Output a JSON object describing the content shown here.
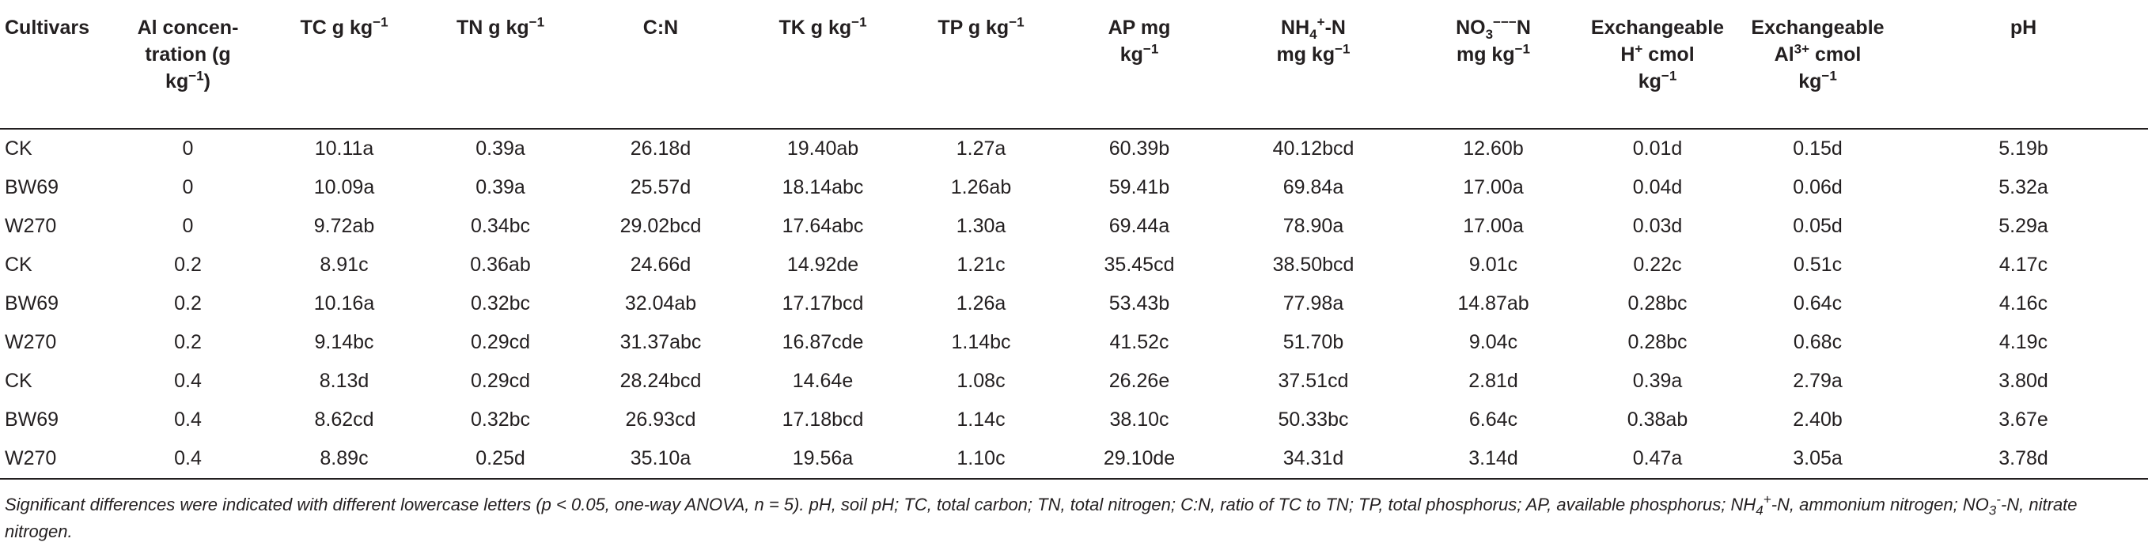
{
  "table": {
    "headers": [
      {
        "id": "cultivars",
        "html": "Cultivars"
      },
      {
        "id": "al",
        "html": "Al concen-<br>tration (g<br>kg<sup>−1</sup>)"
      },
      {
        "id": "tc",
        "html": "TC g kg<sup>−1</sup>"
      },
      {
        "id": "tn",
        "html": "TN g kg<sup>−1</sup>"
      },
      {
        "id": "cn",
        "html": "C:N"
      },
      {
        "id": "tk",
        "html": "TK g kg<sup>−1</sup>"
      },
      {
        "id": "tp",
        "html": "TP g kg<sup>−1</sup>"
      },
      {
        "id": "ap",
        "html": "AP mg<br>kg<sup>−1</sup>"
      },
      {
        "id": "nh4",
        "html": "NH<sub>4</sub><sup>+</sup>-N<br>mg kg<sup>−1</sup>"
      },
      {
        "id": "no3",
        "html": "NO<sub>3</sub><sup>−−−</sup>N<br>mg kg<sup>−1</sup>"
      },
      {
        "id": "exh",
        "html": "Exchangeable<br>H<sup>+</sup> cmol<br>kg<sup>−1</sup>"
      },
      {
        "id": "exal",
        "html": "Exchangeable<br>Al<sup>3+</sup> cmol<br>kg<sup>−1</sup>"
      },
      {
        "id": "ph",
        "html": "pH"
      }
    ],
    "rows": [
      [
        "CK",
        "0",
        "10.11a",
        "0.39a",
        "26.18d",
        "19.40ab",
        "1.27a",
        "60.39b",
        "40.12bcd",
        "12.60b",
        "0.01d",
        "0.15d",
        "5.19b"
      ],
      [
        "BW69",
        "0",
        "10.09a",
        "0.39a",
        "25.57d",
        "18.14abc",
        "1.26ab",
        "59.41b",
        "69.84a",
        "17.00a",
        "0.04d",
        "0.06d",
        "5.32a"
      ],
      [
        "W270",
        "0",
        "9.72ab",
        "0.34bc",
        "29.02bcd",
        "17.64abc",
        "1.30a",
        "69.44a",
        "78.90a",
        "17.00a",
        "0.03d",
        "0.05d",
        "5.29a"
      ],
      [
        "CK",
        "0.2",
        "8.91c",
        "0.36ab",
        "24.66d",
        "14.92de",
        "1.21c",
        "35.45cd",
        "38.50bcd",
        "9.01c",
        "0.22c",
        "0.51c",
        "4.17c"
      ],
      [
        "BW69",
        "0.2",
        "10.16a",
        "0.32bc",
        "32.04ab",
        "17.17bcd",
        "1.26a",
        "53.43b",
        "77.98a",
        "14.87ab",
        "0.28bc",
        "0.64c",
        "4.16c"
      ],
      [
        "W270",
        "0.2",
        "9.14bc",
        "0.29cd",
        "31.37abc",
        "16.87cde",
        "1.14bc",
        "41.52c",
        "51.70b",
        "9.04c",
        "0.28bc",
        "0.68c",
        "4.19c"
      ],
      [
        "CK",
        "0.4",
        "8.13d",
        "0.29cd",
        "28.24bcd",
        "14.64e",
        "1.08c",
        "26.26e",
        "37.51cd",
        "2.81d",
        "0.39a",
        "2.79a",
        "3.80d"
      ],
      [
        "BW69",
        "0.4",
        "8.62cd",
        "0.32bc",
        "26.93cd",
        "17.18bcd",
        "1.14c",
        "38.10c",
        "50.33bc",
        "6.64c",
        "0.38ab",
        "2.40b",
        "3.67e"
      ],
      [
        "W270",
        "0.4",
        "8.89c",
        "0.25d",
        "35.10a",
        "19.56a",
        "1.10c",
        "29.10de",
        "34.31d",
        "3.14d",
        "0.47a",
        "3.05a",
        "3.78d"
      ]
    ]
  },
  "footnote": {
    "html": "Significant differences were indicated with different lowercase letters (p &lt; 0.05, one-way ANOVA, n = 5). pH, soil pH; TC, total carbon; TN, total nitrogen; C:N, ratio of TC to TN; TP, total phosphorus; AP, available phosphorus; NH<sub>4</sub><sup>+</sup>-N, ammonium nitrogen; NO<sub>3</sub><sup>-</sup>-N, nitrate nitrogen."
  }
}
